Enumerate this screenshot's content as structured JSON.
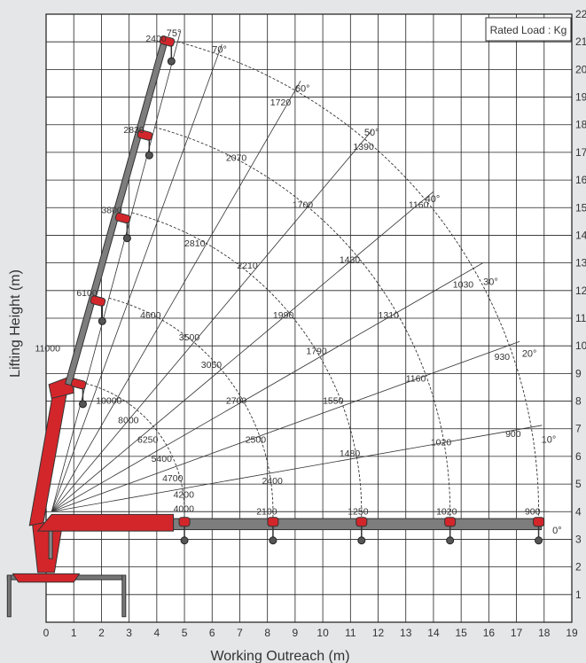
{
  "chart_data": {
    "type": "crane-load-chart",
    "rated_load_label": "Rated Load : Kg",
    "xlabel": "Working Outreach (m)",
    "ylabel": "Lifting Height (m)",
    "xlim": [
      0,
      19
    ],
    "ylim": [
      0,
      22
    ],
    "x_ticks": [
      0,
      1,
      2,
      3,
      4,
      5,
      6,
      7,
      8,
      9,
      10,
      11,
      12,
      13,
      14,
      15,
      16,
      17,
      18,
      19
    ],
    "y_ticks": [
      1,
      2,
      3,
      4,
      5,
      6,
      7,
      8,
      9,
      10,
      11,
      12,
      13,
      14,
      15,
      16,
      17,
      18,
      19,
      20,
      21,
      22
    ],
    "grid": true,
    "pivot": [
      0.2,
      4.0
    ],
    "boom_angles": [
      {
        "deg": 75,
        "label": "75°",
        "x": 4.35,
        "y": 21.2
      },
      {
        "deg": 70,
        "label": "70°",
        "x": 6.0,
        "y": 20.6
      },
      {
        "deg": 60,
        "label": "60°",
        "x": 9.0,
        "y": 19.2
      },
      {
        "deg": 50,
        "label": "50°",
        "x": 11.5,
        "y": 17.6
      },
      {
        "deg": 40,
        "label": "40°",
        "x": 13.7,
        "y": 15.2
      },
      {
        "deg": 30,
        "label": "30°",
        "x": 15.8,
        "y": 12.2
      },
      {
        "deg": 20,
        "label": "20°",
        "x": 17.2,
        "y": 9.6
      },
      {
        "deg": 10,
        "label": "10°",
        "x": 17.9,
        "y": 6.5
      },
      {
        "deg": 0,
        "label": "0°",
        "x": 18.3,
        "y": 3.2
      }
    ],
    "reach_arcs": [
      {
        "radius": 4.8
      },
      {
        "radius": 8.0
      },
      {
        "radius": 11.2
      },
      {
        "radius": 14.4
      },
      {
        "radius": 17.6
      }
    ],
    "loads": [
      {
        "label": "2400",
        "x": 3.6,
        "y": 21.0
      },
      {
        "label": "2830",
        "x": 2.8,
        "y": 17.7
      },
      {
        "label": "3800",
        "x": 2.0,
        "y": 14.8
      },
      {
        "label": "6100",
        "x": 1.1,
        "y": 11.8
      },
      {
        "label": "11000",
        "x": -0.4,
        "y": 9.8
      },
      {
        "label": "10000",
        "x": 1.8,
        "y": 7.9
      },
      {
        "label": "1720",
        "x": 8.1,
        "y": 18.7
      },
      {
        "label": "2070",
        "x": 6.5,
        "y": 16.7
      },
      {
        "label": "2810",
        "x": 5.0,
        "y": 13.6
      },
      {
        "label": "4600",
        "x": 3.4,
        "y": 11.0
      },
      {
        "label": "8000",
        "x": 2.6,
        "y": 7.2
      },
      {
        "label": "6250",
        "x": 3.3,
        "y": 6.5
      },
      {
        "label": "5400",
        "x": 3.8,
        "y": 5.8
      },
      {
        "label": "4700",
        "x": 4.2,
        "y": 5.1
      },
      {
        "label": "4200",
        "x": 4.6,
        "y": 4.5
      },
      {
        "label": "4000",
        "x": 4.6,
        "y": 4.0
      },
      {
        "label": "1390",
        "x": 11.1,
        "y": 17.1
      },
      {
        "label": "1700",
        "x": 8.9,
        "y": 15.0
      },
      {
        "label": "2210",
        "x": 6.9,
        "y": 12.8
      },
      {
        "label": "3500",
        "x": 4.8,
        "y": 10.2
      },
      {
        "label": "3050",
        "x": 5.6,
        "y": 9.2
      },
      {
        "label": "2700",
        "x": 6.5,
        "y": 7.9
      },
      {
        "label": "2500",
        "x": 7.2,
        "y": 6.5
      },
      {
        "label": "2400",
        "x": 7.8,
        "y": 5.0
      },
      {
        "label": "2100",
        "x": 7.6,
        "y": 3.9
      },
      {
        "label": "1160",
        "x": 13.1,
        "y": 15.0
      },
      {
        "label": "1430",
        "x": 10.6,
        "y": 13.0
      },
      {
        "label": "1990",
        "x": 8.2,
        "y": 11.0
      },
      {
        "label": "1790",
        "x": 9.4,
        "y": 9.7
      },
      {
        "label": "1550",
        "x": 10.0,
        "y": 7.9
      },
      {
        "label": "1480",
        "x": 10.6,
        "y": 6.0
      },
      {
        "label": "1250",
        "x": 10.9,
        "y": 3.9
      },
      {
        "label": "1030",
        "x": 14.7,
        "y": 12.1
      },
      {
        "label": "1310",
        "x": 12.0,
        "y": 11.0
      },
      {
        "label": "1160",
        "x": 13.0,
        "y": 8.7
      },
      {
        "label": "1020",
        "x": 13.9,
        "y": 6.4
      },
      {
        "label": "1020",
        "x": 14.1,
        "y": 3.9
      },
      {
        "label": "930",
        "x": 16.2,
        "y": 9.5
      },
      {
        "label": "900",
        "x": 16.6,
        "y": 6.7
      },
      {
        "label": "900",
        "x": 17.3,
        "y": 3.9
      }
    ]
  }
}
